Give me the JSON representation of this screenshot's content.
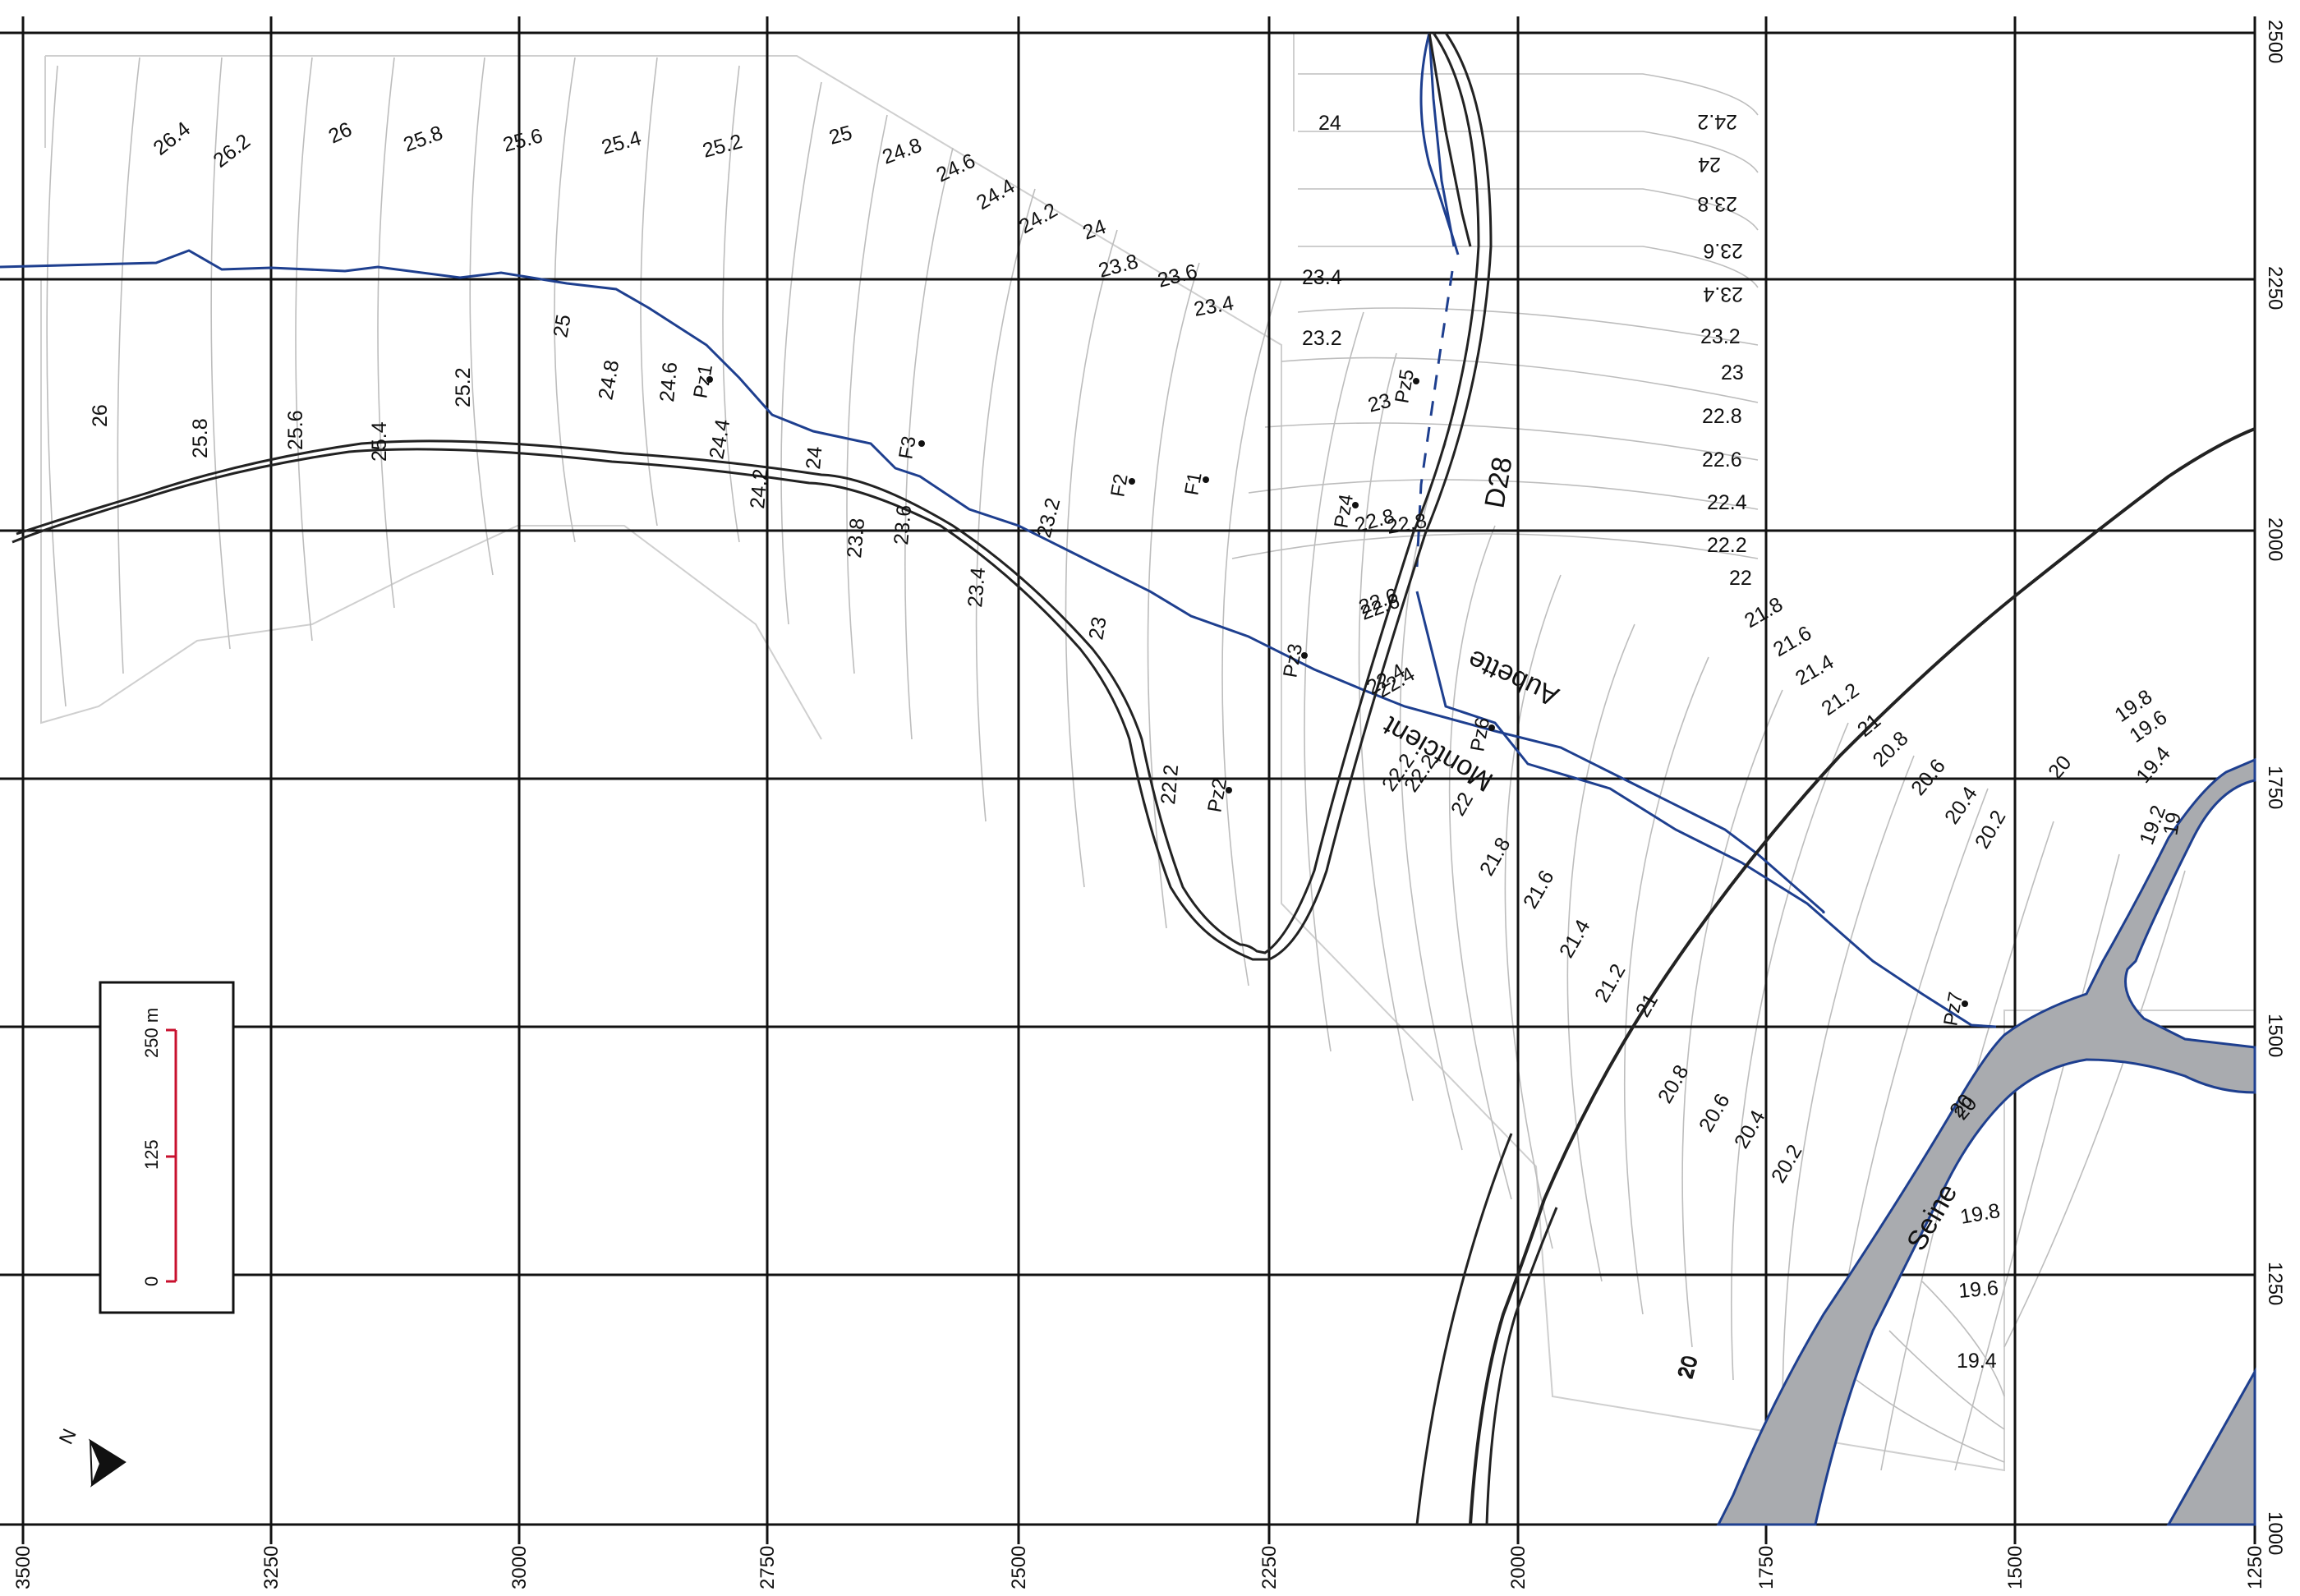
{
  "grid": {
    "x_labels": [
      "3500",
      "3250",
      "3000",
      "2750",
      "2500",
      "2250",
      "2000",
      "1750",
      "1500",
      "1250"
    ],
    "y_labels": [
      "2500",
      "2250",
      "2000",
      "1750",
      "1500",
      "1250",
      "1000"
    ]
  },
  "contours_left": [
    "26.4",
    "26.2",
    "26",
    "25.8",
    "25.6",
    "25.4",
    "25.2",
    "25",
    "24.8",
    "24.6",
    "24.4",
    "24.2",
    "24",
    "23.8",
    "23.6",
    "23.4",
    "23.2",
    "23",
    "22.8",
    "22.6",
    "22.4",
    "22.2",
    "22",
    "21.8",
    "21.6",
    "21.4",
    "21.2",
    "21",
    "20.8",
    "20.6",
    "20.4",
    "20.2",
    "20",
    "19.8",
    "19.6",
    "19.4"
  ],
  "contours_lower": [
    "26",
    "25.8",
    "25.6",
    "25.4",
    "25.2",
    "25",
    "24.8",
    "24.6",
    "24.4",
    "24.2",
    "24",
    "23.8",
    "23.6",
    "23.4",
    "23.2",
    "23",
    "22.8",
    "22.6",
    "22.4",
    "22.2",
    "22",
    "21.8",
    "21.6",
    "21.4",
    "21.2",
    "21",
    "20.8",
    "20.6",
    "20.4",
    "20.2",
    "20"
  ],
  "contours_right": [
    "24.2",
    "24",
    "23.8",
    "23.6",
    "23.4",
    "23.2",
    "23",
    "22.8",
    "22.6",
    "22.4",
    "22.2",
    "22",
    "21.8",
    "21.6",
    "21.4",
    "21.2",
    "21",
    "20.8",
    "20.6",
    "20.4",
    "20.2",
    "20",
    "19.8",
    "19.6",
    "19.4",
    "19.2",
    "19"
  ],
  "contours_seine": [
    "20",
    "19.8",
    "19.6",
    "19.4",
    "20"
  ],
  "wells": [
    "Pz1",
    "F3",
    "F2",
    "F1",
    "Pz4",
    "Pz5",
    "Pz3",
    "Pz6",
    "Pz2",
    "Pz7"
  ],
  "features": {
    "road": "D28",
    "river1": "Aubette",
    "river2": "Montcient",
    "river3": "Seine"
  },
  "scale_bar": {
    "labels": [
      "0",
      "125",
      "250 m"
    ]
  },
  "north": "N",
  "colors": {
    "grid": "#111111",
    "river": "#1e3f8f",
    "road": "#222222",
    "contour": "#b9b9b9",
    "water_fill": "#a9abaf",
    "scale": "#c8102e"
  }
}
